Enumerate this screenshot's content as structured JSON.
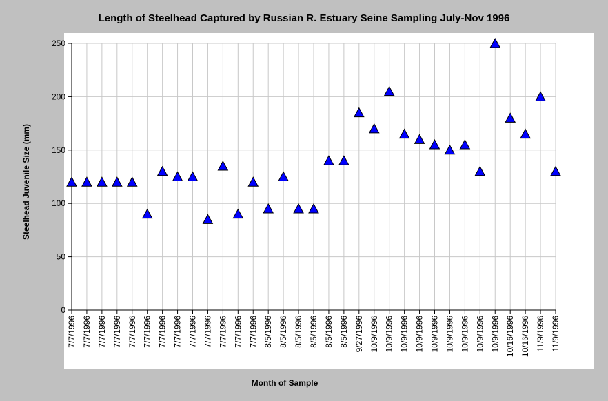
{
  "chart_data": {
    "type": "scatter",
    "title": "Length of Steelhead Captured by Russian R. Estuary Seine Sampling July-Nov 1996",
    "xlabel": "Month of Sample",
    "ylabel": "Steelhead Juvenile Size (mm)",
    "ylim": [
      0,
      250
    ],
    "yticks": [
      0,
      50,
      100,
      150,
      200,
      250
    ],
    "grid": true,
    "marker": "triangle",
    "colors": {
      "marker": "#0000ff",
      "grid": "#c8c8c8",
      "background": "#ffffff"
    },
    "categories": [
      "7/7/1996",
      "7/7/1996",
      "7/7/1996",
      "7/7/1996",
      "7/7/1996",
      "7/7/1996",
      "7/7/1996",
      "7/7/1996",
      "7/7/1996",
      "7/7/1996",
      "7/7/1996",
      "7/7/1996",
      "7/7/1996",
      "8/5/1996",
      "8/5/1996",
      "8/5/1996",
      "8/5/1996",
      "8/5/1996",
      "8/5/1996",
      "9/27/1996",
      "10/9/1996",
      "10/9/1996",
      "10/9/1996",
      "10/9/1996",
      "10/9/1996",
      "10/9/1996",
      "10/9/1996",
      "10/9/1996",
      "10/9/1996",
      "10/16/1996",
      "10/16/1996",
      "11/9/1996",
      "11/9/1996"
    ],
    "values": [
      120,
      120,
      120,
      120,
      120,
      90,
      130,
      125,
      125,
      85,
      135,
      90,
      120,
      95,
      125,
      95,
      95,
      140,
      140,
      185,
      170,
      205,
      165,
      160,
      155,
      150,
      155,
      130,
      250,
      180,
      165,
      200,
      130
    ]
  }
}
